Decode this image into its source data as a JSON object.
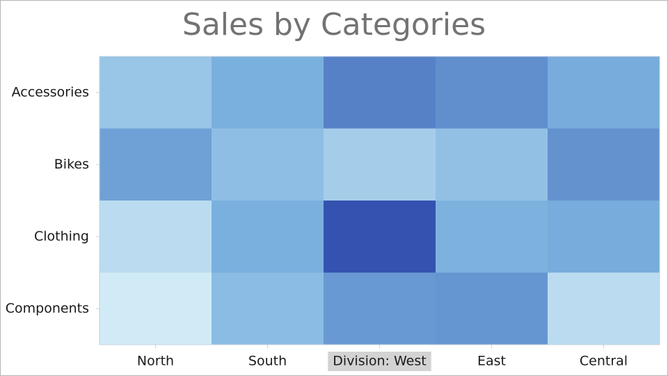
{
  "chart_data": {
    "type": "heatmap",
    "title": "Sales by Categories",
    "x_categories": [
      "North",
      "South",
      "Division: West",
      "East",
      "Central"
    ],
    "y_categories": [
      "Accessories",
      "Bikes",
      "Clothing",
      "Components"
    ],
    "values": [
      [
        32,
        50,
        75,
        68,
        52
      ],
      [
        58,
        38,
        25,
        36,
        66
      ],
      [
        12,
        50,
        100,
        48,
        52
      ],
      [
        0,
        40,
        62,
        64,
        12
      ]
    ],
    "colorscale": [
      "#d0eaf6",
      "#7ab0de",
      "#3452b0"
    ],
    "highlighted_x_category": 2,
    "highlight_color": "#d3d3d3"
  }
}
